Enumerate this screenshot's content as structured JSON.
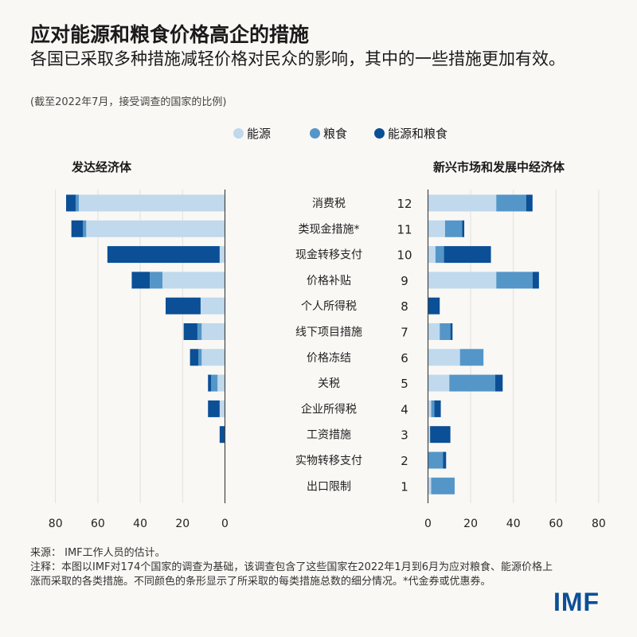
{
  "header": {
    "title": "应对能源和粮食价格高企的措施",
    "subtitle": "各国已采取多种措施减轻价格对民众的影响，其中的一些措施更加有效。",
    "unit_note": "(截至2022年7月，接受调查的国家的比例)"
  },
  "legend": [
    {
      "label": "能源",
      "color": "#c0d9ec"
    },
    {
      "label": "粮食",
      "color": "#5596c9"
    },
    {
      "label": "能源和粮食",
      "color": "#0b4f96"
    }
  ],
  "chart_data": {
    "type": "bar",
    "orientation": "horizontal-stacked",
    "categories": [
      "消费税",
      "类现金措施*",
      "现金转移支付",
      "价格补贴",
      "个人所得税",
      "线下项目措施",
      "价格冻结",
      "关税",
      "企业所得税",
      "工资措施",
      "实物转移支付",
      "出口限制"
    ],
    "ranks": [
      "12",
      "11",
      "10",
      "9",
      "8",
      "7",
      "6",
      "5",
      "4",
      "3",
      "2",
      "1"
    ],
    "grid": true,
    "panels": [
      {
        "title": "发达经济体",
        "direction": "left",
        "xlim": [
          0,
          80
        ],
        "ticks": [
          "80",
          "60",
          "40",
          "20",
          "0"
        ],
        "tick_values": [
          80,
          60,
          40,
          20,
          0
        ],
        "series": [
          {
            "name": "能源",
            "values": [
              69,
              65.5,
              2.5,
              29.5,
              11.5,
              11,
              11,
              3.5,
              2.5,
              0,
              0,
              0
            ]
          },
          {
            "name": "粮食",
            "values": [
              1.5,
              1.5,
              0,
              6,
              0,
              2,
              1.5,
              3,
              0,
              0,
              0,
              0
            ]
          },
          {
            "name": "能源和粮食",
            "values": [
              4.5,
              5.5,
              53,
              8.5,
              16.5,
              6.5,
              4,
              1.5,
              5.5,
              2.5,
              0,
              0
            ]
          }
        ]
      },
      {
        "title": "新兴市场和发展中经济体",
        "direction": "right",
        "xlim": [
          0,
          80
        ],
        "ticks": [
          "0",
          "20",
          "40",
          "60",
          "80"
        ],
        "tick_values": [
          0,
          20,
          40,
          60,
          80
        ],
        "series": [
          {
            "name": "能源",
            "values": [
              32,
              8,
              3.5,
              32,
              0,
              5.5,
              15,
              10,
              1.5,
              1,
              0,
              1.5
            ]
          },
          {
            "name": "粮食",
            "values": [
              14,
              8,
              4,
              17,
              0,
              5,
              11,
              21.5,
              1.5,
              0,
              7,
              11
            ]
          },
          {
            "name": "能源和粮食",
            "values": [
              3,
              1,
              22,
              3,
              5.5,
              1,
              0,
              3.5,
              3,
              9.5,
              1.5,
              0
            ]
          }
        ]
      }
    ]
  },
  "footer": {
    "source": "来源： IMF工作人员的估计。",
    "note": "注释：本图以IMF对174个国家的调查为基础，该调查包含了这些国家在2022年1月到6月为应对粮食、能源价格上涨而采取的各类措施。不同颜色的条形显示了所采取的每类措施总数的细分情况。*代金券或优惠券。",
    "logo": "IMF"
  }
}
